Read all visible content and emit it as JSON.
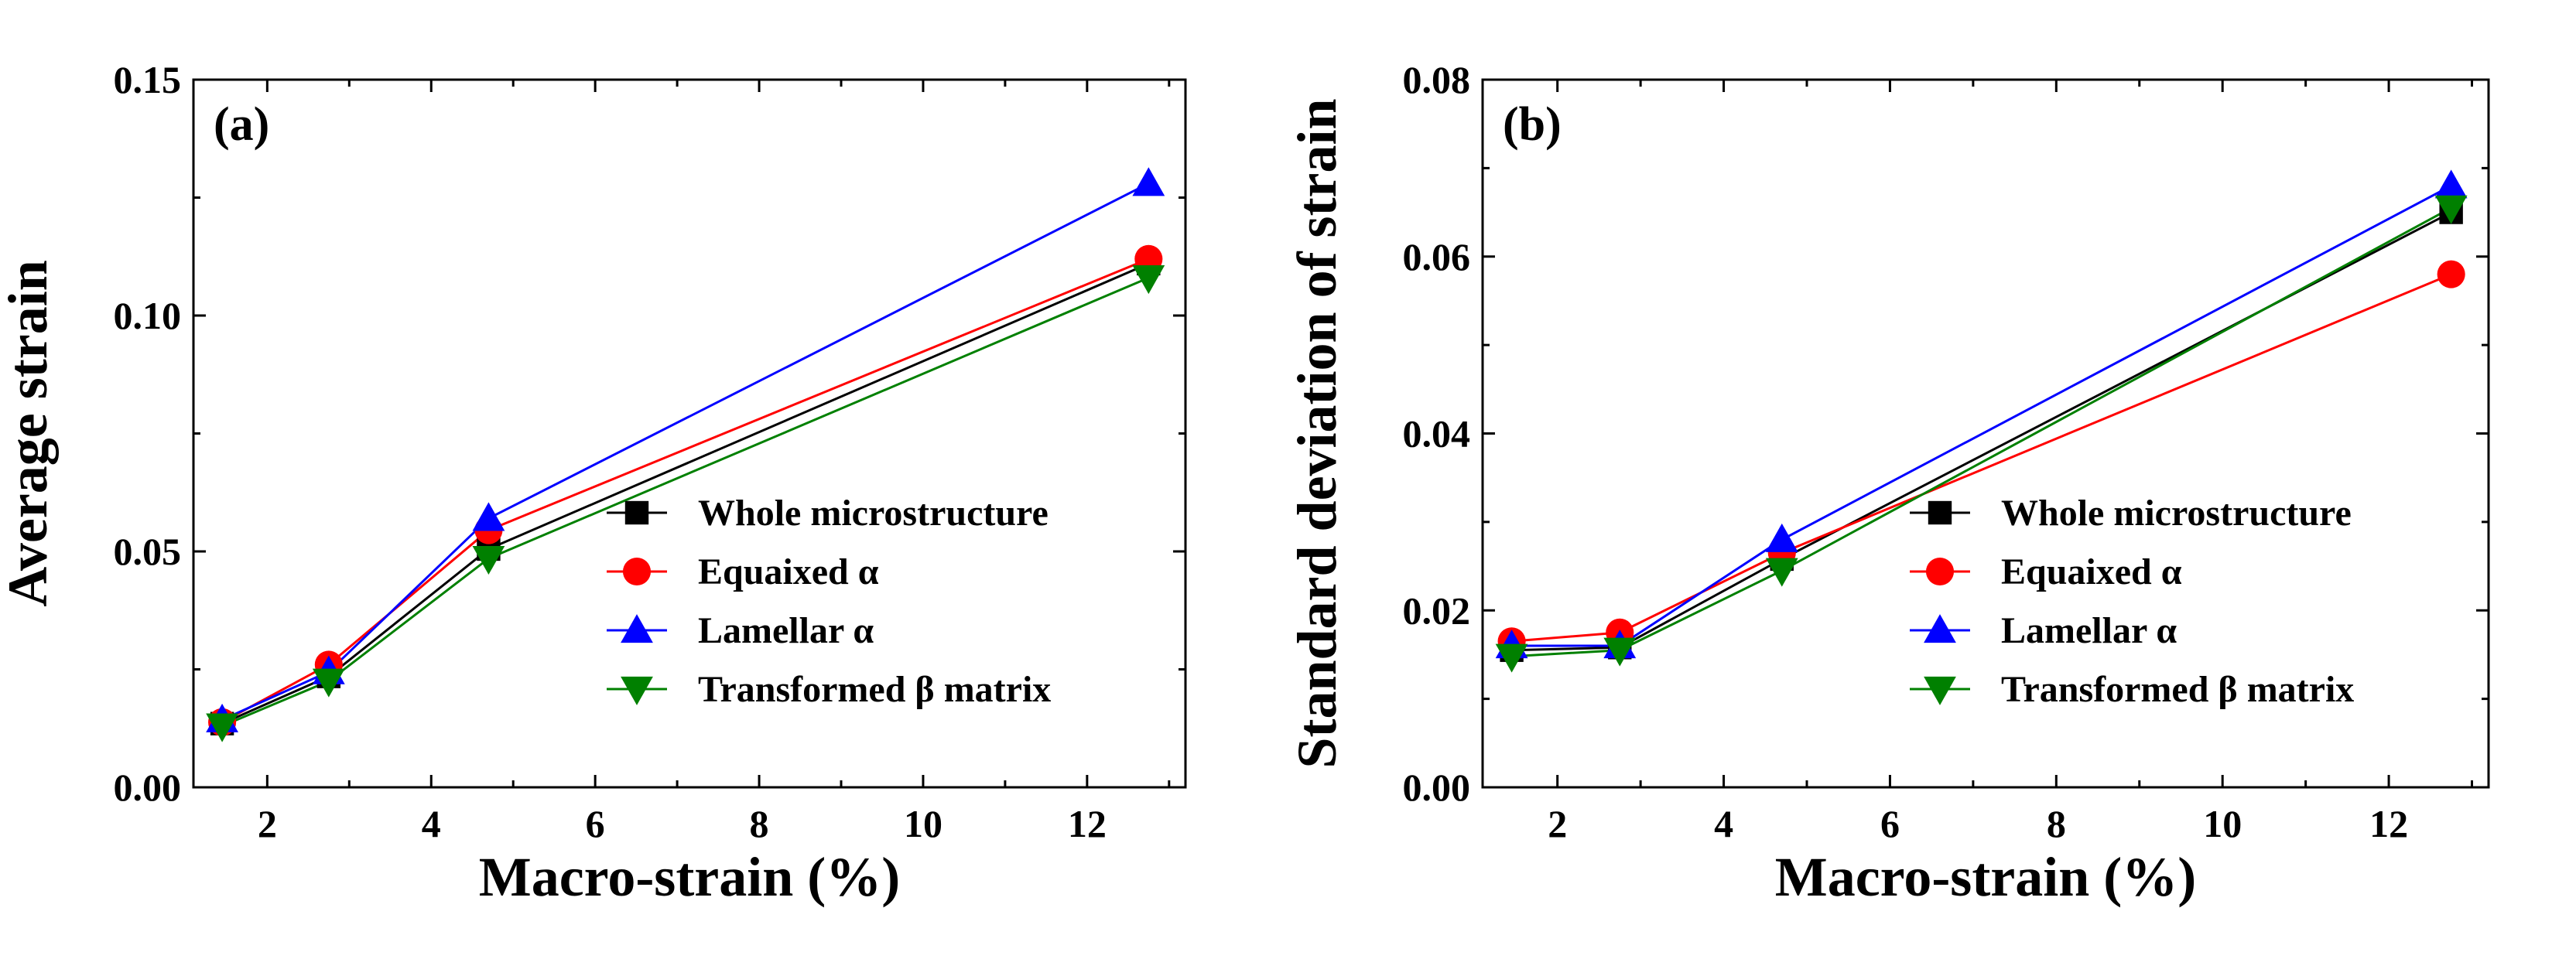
{
  "chart_data": [
    {
      "panel_label": "(a)",
      "type": "line",
      "xlabel": "Macro-strain (%)",
      "ylabel": "Average strain",
      "xlim": [
        1.1,
        13.2
      ],
      "ylim": [
        0.0,
        0.15
      ],
      "x_ticks": [
        2,
        4,
        6,
        8,
        10,
        12
      ],
      "y_ticks": [
        0.0,
        0.05,
        0.1,
        0.15
      ],
      "x_tick_labels": [
        "2",
        "4",
        "6",
        "8",
        "10",
        "12"
      ],
      "y_tick_labels": [
        "0.00",
        "0.05",
        "0.10",
        "0.15"
      ],
      "legend_position": "bottom-right",
      "x": [
        1.45,
        2.75,
        4.7,
        12.75
      ],
      "series": [
        {
          "name": "Whole microstructure",
          "color": "#000000",
          "marker": "square",
          "values": [
            0.0135,
            0.0235,
            0.0505,
            0.111
          ]
        },
        {
          "name": "Equaixed α",
          "color": "#ff0000",
          "marker": "circle",
          "values": [
            0.0138,
            0.026,
            0.0545,
            0.112
          ]
        },
        {
          "name": "Lamellar α",
          "color": "#0000ff",
          "marker": "triangle-up",
          "values": [
            0.0143,
            0.0245,
            0.057,
            0.128
          ]
        },
        {
          "name": "Transformed β matrix",
          "color": "#008000",
          "marker": "triangle-down",
          "values": [
            0.013,
            0.0225,
            0.0485,
            0.108
          ]
        }
      ]
    },
    {
      "panel_label": "(b)",
      "type": "line",
      "xlabel": "Macro-strain (%)",
      "ylabel": "Standard deviation of strain",
      "xlim": [
        1.1,
        13.2
      ],
      "ylim": [
        0.0,
        0.08
      ],
      "x_ticks": [
        2,
        4,
        6,
        8,
        10,
        12
      ],
      "y_ticks": [
        0.0,
        0.02,
        0.04,
        0.06,
        0.08
      ],
      "x_tick_labels": [
        "2",
        "4",
        "6",
        "8",
        "10",
        "12"
      ],
      "y_tick_labels": [
        "0.00",
        "0.02",
        "0.04",
        "0.06",
        "0.08"
      ],
      "legend_position": "bottom-right",
      "x": [
        1.45,
        2.75,
        4.7,
        12.75
      ],
      "series": [
        {
          "name": "Whole microstructure",
          "color": "#000000",
          "marker": "square",
          "values": [
            0.0155,
            0.0158,
            0.0258,
            0.065
          ]
        },
        {
          "name": "Equaixed α",
          "color": "#ff0000",
          "marker": "circle",
          "values": [
            0.0165,
            0.0175,
            0.0265,
            0.058
          ]
        },
        {
          "name": "Lamellar α",
          "color": "#0000ff",
          "marker": "triangle-up",
          "values": [
            0.016,
            0.016,
            0.028,
            0.068
          ]
        },
        {
          "name": "Transformed β matrix",
          "color": "#008000",
          "marker": "triangle-down",
          "values": [
            0.0148,
            0.0155,
            0.0245,
            0.0655
          ]
        }
      ]
    }
  ]
}
